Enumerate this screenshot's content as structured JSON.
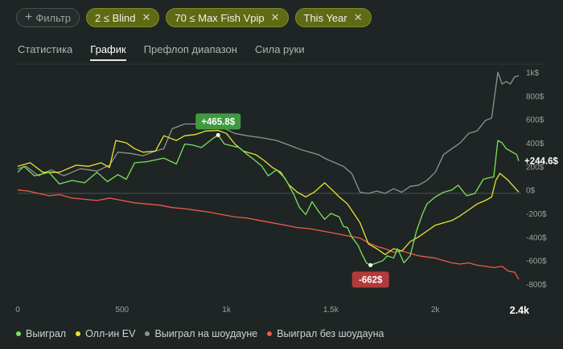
{
  "filters": {
    "add_label": "Фильтр",
    "chips": [
      {
        "label": "2 ≤ Blind"
      },
      {
        "label": "70 ≤ Max Fish Vpip"
      },
      {
        "label": "This Year"
      }
    ]
  },
  "tabs": [
    {
      "label": "Статистика",
      "active": false
    },
    {
      "label": "График",
      "active": true
    },
    {
      "label": "Префлоп диапазон",
      "active": false
    },
    {
      "label": "Сила руки",
      "active": false
    }
  ],
  "chart_data": {
    "type": "line",
    "x_ticks": [
      "0",
      "500",
      "1k",
      "1.5k",
      "2k"
    ],
    "x_end_label": "2.4k",
    "y_ticks": [
      "1k$",
      "800$",
      "600$",
      "400$",
      "200$",
      "0$",
      "-200$",
      "-400$",
      "-600$",
      "-800$"
    ],
    "xlim": [
      0,
      2400
    ],
    "ylim": [
      -800,
      1000
    ],
    "annotations": {
      "max_label": "+465.8$",
      "min_label": "-662$",
      "final_label": "+244.6$"
    },
    "colors": {
      "won": "#7fe05a",
      "allin_ev": "#e9e336",
      "showdown": "#8e9392",
      "no_showdown": "#ee5a4c",
      "max_badge": "#3f9a3f",
      "min_badge": "#b23a3a"
    },
    "series": [
      {
        "name": "Выиграл",
        "color": "#7fe05a",
        "points": [
          [
            0,
            150
          ],
          [
            30,
            200
          ],
          [
            80,
            120
          ],
          [
            150,
            150
          ],
          [
            200,
            50
          ],
          [
            260,
            80
          ],
          [
            320,
            60
          ],
          [
            380,
            150
          ],
          [
            430,
            70
          ],
          [
            480,
            130
          ],
          [
            520,
            90
          ],
          [
            560,
            230
          ],
          [
            620,
            240
          ],
          [
            700,
            270
          ],
          [
            760,
            220
          ],
          [
            800,
            390
          ],
          [
            840,
            380
          ],
          [
            880,
            360
          ],
          [
            930,
            430
          ],
          [
            960,
            466
          ],
          [
            990,
            390
          ],
          [
            1060,
            360
          ],
          [
            1100,
            300
          ],
          [
            1130,
            260
          ],
          [
            1170,
            200
          ],
          [
            1200,
            120
          ],
          [
            1240,
            170
          ],
          [
            1280,
            100
          ],
          [
            1320,
            -30
          ],
          [
            1350,
            -150
          ],
          [
            1380,
            -210
          ],
          [
            1410,
            -100
          ],
          [
            1440,
            -180
          ],
          [
            1470,
            -250
          ],
          [
            1500,
            -200
          ],
          [
            1540,
            -230
          ],
          [
            1560,
            -310
          ],
          [
            1580,
            -320
          ],
          [
            1600,
            -400
          ],
          [
            1630,
            -470
          ],
          [
            1650,
            -550
          ],
          [
            1670,
            -620
          ],
          [
            1690,
            -640
          ],
          [
            1720,
            -620
          ],
          [
            1750,
            -600
          ],
          [
            1770,
            -560
          ],
          [
            1800,
            -580
          ],
          [
            1820,
            -500
          ],
          [
            1850,
            -620
          ],
          [
            1880,
            -560
          ],
          [
            1910,
            -350
          ],
          [
            1940,
            -200
          ],
          [
            1960,
            -120
          ],
          [
            2000,
            -60
          ],
          [
            2040,
            -20
          ],
          [
            2080,
            0
          ],
          [
            2110,
            40
          ],
          [
            2150,
            -50
          ],
          [
            2190,
            -30
          ],
          [
            2230,
            90
          ],
          [
            2250,
            100
          ],
          [
            2280,
            110
          ],
          [
            2300,
            420
          ],
          [
            2320,
            400
          ],
          [
            2340,
            350
          ],
          [
            2370,
            320
          ],
          [
            2390,
            300
          ],
          [
            2400,
            245
          ]
        ]
      },
      {
        "name": "Олл-ин EV",
        "color": "#e9e336",
        "points": [
          [
            0,
            200
          ],
          [
            60,
            230
          ],
          [
            120,
            150
          ],
          [
            200,
            150
          ],
          [
            280,
            210
          ],
          [
            340,
            200
          ],
          [
            400,
            230
          ],
          [
            440,
            190
          ],
          [
            470,
            420
          ],
          [
            520,
            400
          ],
          [
            560,
            350
          ],
          [
            600,
            320
          ],
          [
            660,
            330
          ],
          [
            700,
            460
          ],
          [
            760,
            420
          ],
          [
            800,
            460
          ],
          [
            850,
            470
          ],
          [
            900,
            500
          ],
          [
            960,
            505
          ],
          [
            1000,
            480
          ],
          [
            1040,
            390
          ],
          [
            1080,
            330
          ],
          [
            1140,
            300
          ],
          [
            1180,
            250
          ],
          [
            1220,
            190
          ],
          [
            1260,
            150
          ],
          [
            1300,
            40
          ],
          [
            1340,
            -20
          ],
          [
            1380,
            -60
          ],
          [
            1420,
            -20
          ],
          [
            1470,
            60
          ],
          [
            1500,
            10
          ],
          [
            1540,
            -60
          ],
          [
            1580,
            -120
          ],
          [
            1610,
            -200
          ],
          [
            1640,
            -280
          ],
          [
            1680,
            -460
          ],
          [
            1720,
            -500
          ],
          [
            1760,
            -550
          ],
          [
            1800,
            -500
          ],
          [
            1840,
            -520
          ],
          [
            1880,
            -440
          ],
          [
            1920,
            -400
          ],
          [
            1960,
            -350
          ],
          [
            2000,
            -300
          ],
          [
            2040,
            -280
          ],
          [
            2080,
            -260
          ],
          [
            2120,
            -220
          ],
          [
            2160,
            -170
          ],
          [
            2200,
            -120
          ],
          [
            2240,
            -90
          ],
          [
            2270,
            -60
          ],
          [
            2290,
            80
          ],
          [
            2310,
            140
          ],
          [
            2330,
            110
          ],
          [
            2350,
            80
          ],
          [
            2370,
            40
          ],
          [
            2400,
            -20
          ]
        ]
      },
      {
        "name": "Выиграл на шоудауне",
        "color": "#8e9392",
        "points": [
          [
            0,
            180
          ],
          [
            40,
            200
          ],
          [
            100,
            120
          ],
          [
            160,
            170
          ],
          [
            220,
            120
          ],
          [
            300,
            180
          ],
          [
            380,
            160
          ],
          [
            440,
            210
          ],
          [
            480,
            320
          ],
          [
            540,
            310
          ],
          [
            600,
            290
          ],
          [
            660,
            330
          ],
          [
            700,
            350
          ],
          [
            740,
            520
          ],
          [
            800,
            560
          ],
          [
            860,
            560
          ],
          [
            920,
            600
          ],
          [
            980,
            530
          ],
          [
            1040,
            480
          ],
          [
            1100,
            460
          ],
          [
            1180,
            440
          ],
          [
            1240,
            420
          ],
          [
            1300,
            380
          ],
          [
            1360,
            340
          ],
          [
            1400,
            320
          ],
          [
            1440,
            300
          ],
          [
            1480,
            260
          ],
          [
            1520,
            230
          ],
          [
            1560,
            200
          ],
          [
            1600,
            140
          ],
          [
            1640,
            -20
          ],
          [
            1680,
            -30
          ],
          [
            1720,
            -10
          ],
          [
            1760,
            -30
          ],
          [
            1800,
            10
          ],
          [
            1840,
            -20
          ],
          [
            1880,
            30
          ],
          [
            1920,
            40
          ],
          [
            1960,
            80
          ],
          [
            2000,
            150
          ],
          [
            2040,
            300
          ],
          [
            2080,
            350
          ],
          [
            2120,
            400
          ],
          [
            2160,
            480
          ],
          [
            2200,
            500
          ],
          [
            2240,
            590
          ],
          [
            2270,
            610
          ],
          [
            2300,
            1000
          ],
          [
            2320,
            900
          ],
          [
            2340,
            920
          ],
          [
            2360,
            900
          ],
          [
            2380,
            960
          ],
          [
            2400,
            970
          ]
        ]
      },
      {
        "name": "Выиграл без шоудауна",
        "color": "#ee5a4c",
        "points": [
          [
            0,
            0
          ],
          [
            50,
            -10
          ],
          [
            100,
            -30
          ],
          [
            150,
            -50
          ],
          [
            200,
            -40
          ],
          [
            260,
            -70
          ],
          [
            320,
            -80
          ],
          [
            380,
            -90
          ],
          [
            440,
            -70
          ],
          [
            500,
            -90
          ],
          [
            560,
            -110
          ],
          [
            620,
            -120
          ],
          [
            680,
            -130
          ],
          [
            740,
            -150
          ],
          [
            800,
            -160
          ],
          [
            860,
            -175
          ],
          [
            920,
            -190
          ],
          [
            980,
            -210
          ],
          [
            1040,
            -230
          ],
          [
            1100,
            -240
          ],
          [
            1160,
            -260
          ],
          [
            1220,
            -280
          ],
          [
            1280,
            -300
          ],
          [
            1340,
            -320
          ],
          [
            1400,
            -330
          ],
          [
            1460,
            -350
          ],
          [
            1520,
            -370
          ],
          [
            1580,
            -390
          ],
          [
            1640,
            -410
          ],
          [
            1680,
            -450
          ],
          [
            1720,
            -480
          ],
          [
            1760,
            -500
          ],
          [
            1800,
            -530
          ],
          [
            1840,
            -520
          ],
          [
            1880,
            -540
          ],
          [
            1920,
            -560
          ],
          [
            1960,
            -570
          ],
          [
            2000,
            -580
          ],
          [
            2040,
            -600
          ],
          [
            2080,
            -620
          ],
          [
            2120,
            -630
          ],
          [
            2160,
            -620
          ],
          [
            2200,
            -640
          ],
          [
            2240,
            -650
          ],
          [
            2280,
            -660
          ],
          [
            2320,
            -650
          ],
          [
            2350,
            -690
          ],
          [
            2380,
            -700
          ],
          [
            2400,
            -760
          ]
        ]
      }
    ]
  }
}
